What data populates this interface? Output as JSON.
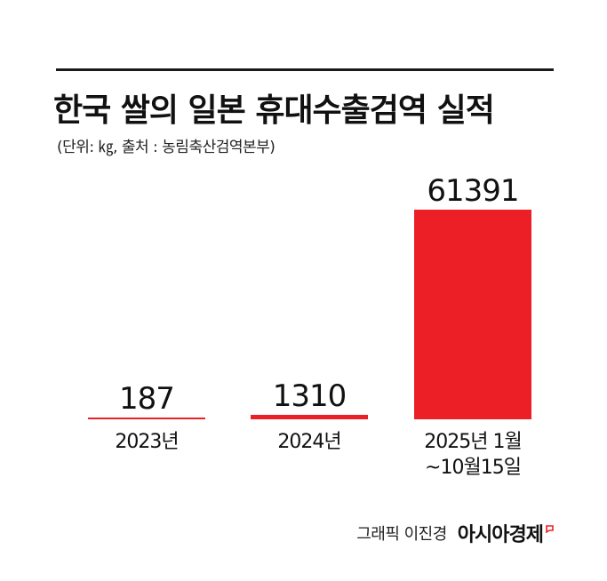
{
  "title": "한국 쌀의 일본 휴대수출검역 실적",
  "subtitle": "(단위: ㎏, 출처 : 농림축산검역본부)",
  "credit": {
    "name": "그래픽 이진경",
    "brand": "아시아경제"
  },
  "colors": {
    "bar": "#ec1f27",
    "accent": "#ec1f27",
    "rule": "#1a1a1a"
  },
  "chart_data": {
    "type": "bar",
    "categories": [
      [
        "2023년"
      ],
      [
        "2024년"
      ],
      [
        "2025년 1월",
        "~10월15일"
      ]
    ],
    "values": [
      187,
      1310,
      61391
    ],
    "data_labels": [
      "187",
      "1310",
      "61391"
    ],
    "unit": "㎏",
    "ylim": [
      0,
      61391
    ],
    "grid": false,
    "legend": "none"
  }
}
